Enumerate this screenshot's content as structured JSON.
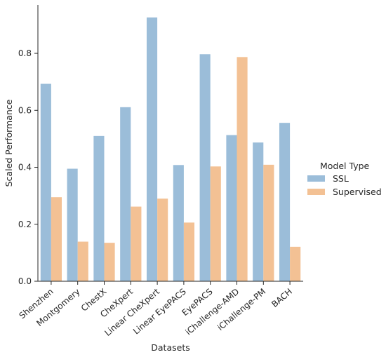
{
  "chart_data": {
    "type": "bar",
    "title": "",
    "xlabel": "Datasets",
    "ylabel": "Scaled Performance",
    "ylim": [
      0,
      0.97
    ],
    "yticks": [
      "0.0",
      "0.2",
      "0.4",
      "0.6",
      "0.8"
    ],
    "grid": false,
    "legend_position": "right",
    "categories": [
      "Shenzhen",
      "Montgomery",
      "ChestX",
      "CheXpert",
      "Linear CheXpert",
      "Linear EyePACS",
      "EyePACS",
      "iChallenge-AMD",
      "iChallenge-PM",
      "BACH"
    ],
    "series": [
      {
        "name": "SSL",
        "color": "#9bbdd9",
        "values": [
          0.693,
          0.395,
          0.51,
          0.611,
          0.926,
          0.408,
          0.797,
          0.513,
          0.487,
          0.556
        ]
      },
      {
        "name": "Supervised",
        "color": "#f3c194",
        "values": [
          0.295,
          0.139,
          0.135,
          0.262,
          0.29,
          0.206,
          0.403,
          0.787,
          0.409,
          0.121
        ]
      }
    ],
    "legend_title": "Model Type"
  }
}
